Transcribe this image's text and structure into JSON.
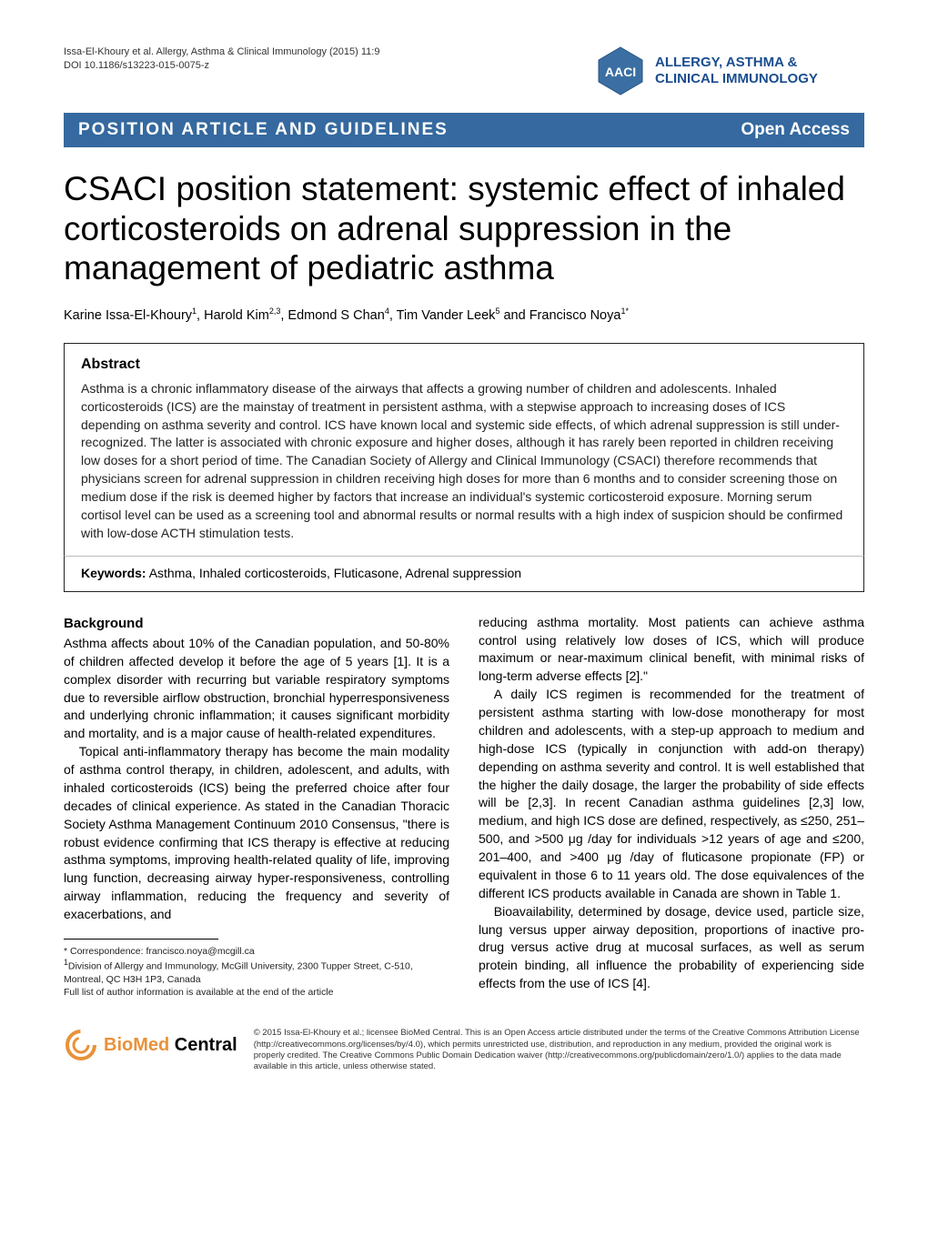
{
  "header": {
    "citation_authors": "Issa-El-Khoury et al. Allergy, Asthma & Clinical Immunology  (2015) 11:9",
    "doi": "DOI 10.1186/s13223-015-0075-z",
    "journal_name": "ALLERGY, ASTHMA & CLINICAL IMMUNOLOGY",
    "logo_text": "AACI",
    "logo_bg": "#3b6fa3",
    "logo_accent": "#ffffff"
  },
  "banner": {
    "left": "POSITION ARTICLE AND GUIDELINES",
    "right": "Open Access",
    "bg_color": "#35699f",
    "text_color": "#ffffff"
  },
  "title": "CSACI position statement: systemic effect of inhaled corticosteroids on adrenal suppression in the management of pediatric asthma",
  "authors_html": "Karine Issa-El-Khoury<sup>1</sup>, Harold Kim<sup>2,3</sup>, Edmond S Chan<sup>4</sup>, Tim Vander Leek<sup>5</sup> and Francisco Noya<sup>1*</sup>",
  "abstract": {
    "heading": "Abstract",
    "text": "Asthma is a chronic inflammatory disease of the airways that affects a growing number of children and adolescents. Inhaled corticosteroids (ICS) are the mainstay of treatment in persistent asthma, with a stepwise approach to increasing doses of ICS depending on asthma severity and control. ICS have known local and systemic side effects, of which adrenal suppression is still under-recognized. The latter is associated with chronic exposure and higher doses, although it has rarely been reported in children receiving low doses for a short period of time. The Canadian Society of Allergy and Clinical Immunology (CSACI) therefore recommends that physicians screen for adrenal suppression in children receiving high doses for more than 6 months and to consider screening those on medium dose if the risk is deemed higher by factors that increase an individual's systemic corticosteroid exposure. Morning serum cortisol level can be used as a screening tool and abnormal results or normal results with a high index of suspicion should be confirmed with low-dose ACTH stimulation tests."
  },
  "keywords": {
    "label": "Keywords:",
    "text": " Asthma, Inhaled corticosteroids, Fluticasone, Adrenal suppression"
  },
  "body": {
    "background_heading": "Background",
    "col1_p1": "Asthma affects about 10% of the Canadian population, and 50-80% of children affected develop it before the age of 5 years [1]. It is a complex disorder with recurring but variable respiratory symptoms due to reversible airflow obstruction, bronchial hyperresponsiveness and underlying chronic inflammation; it causes significant morbidity and mortality, and is a major cause of health-related expenditures.",
    "col1_p2": "Topical anti-inflammatory therapy has become the main modality of asthma control therapy, in children, adolescent, and adults, with inhaled corticosteroids (ICS) being the preferred choice after four decades of clinical experience. As stated in the Canadian Thoracic Society Asthma Management Continuum 2010 Consensus, \"there is robust evidence confirming that ICS therapy is effective at reducing asthma symptoms, improving health-related quality of life, improving lung function, decreasing airway hyper-responsiveness, controlling airway inflammation, reducing the frequency and severity of exacerbations, and",
    "col2_p1": "reducing asthma mortality. Most patients can achieve asthma control using relatively low doses of ICS, which will produce maximum or near-maximum clinical benefit, with minimal risks of long-term adverse effects [2].\"",
    "col2_p2": "A daily ICS regimen is recommended for the treatment of persistent asthma starting with low-dose monotherapy for most children and adolescents, with a step-up approach to medium and high-dose ICS (typically in conjunction with add-on therapy) depending on asthma severity and control. It is well established that the higher the daily dosage, the larger the probability of side effects will be [2,3]. In recent Canadian asthma guidelines [2,3] low, medium, and high ICS dose are defined, respectively, as ≤250, 251–500, and >500 μg /day for individuals >12 years of age and ≤200, 201–400, and >400 μg /day of fluticasone propionate (FP) or equivalent in those 6 to 11 years old. The dose equivalences of the different ICS products available in Canada are shown in Table 1.",
    "col2_p3": "Bioavailability, determined by dosage, device used, particle size, lung versus upper airway deposition, proportions of inactive pro-drug versus active drug at mucosal surfaces, as well as serum protein binding, all influence the probability of experiencing side effects from the use of ICS [4]."
  },
  "correspondence": {
    "line1": "* Correspondence: francisco.noya@mcgill.ca",
    "line2": "1Division of Allergy and Immunology, McGill University, 2300 Tupper Street, C-510, Montreal, QC H3H 1P3, Canada",
    "line3": "Full list of author information is available at the end of the article"
  },
  "footer": {
    "bmc_label": "BioMed Central",
    "bmc_color": "#e8923a",
    "license": "© 2015 Issa-El-Khoury et al.; licensee BioMed Central. This is an Open Access article distributed under the terms of the Creative Commons Attribution License (http://creativecommons.org/licenses/by/4.0), which permits unrestricted use, distribution, and reproduction in any medium, provided the original work is properly credited. The Creative Commons Public Domain Dedication waiver (http://creativecommons.org/publicdomain/zero/1.0/) applies to the data made available in this article, unless otherwise stated."
  },
  "style": {
    "page_bg": "#ffffff",
    "text_color": "#000000",
    "accent_blue": "#35699f",
    "brand_blue": "#1a4d8f",
    "title_fontsize": 37,
    "body_fontsize": 14,
    "abstract_fontsize": 14
  }
}
